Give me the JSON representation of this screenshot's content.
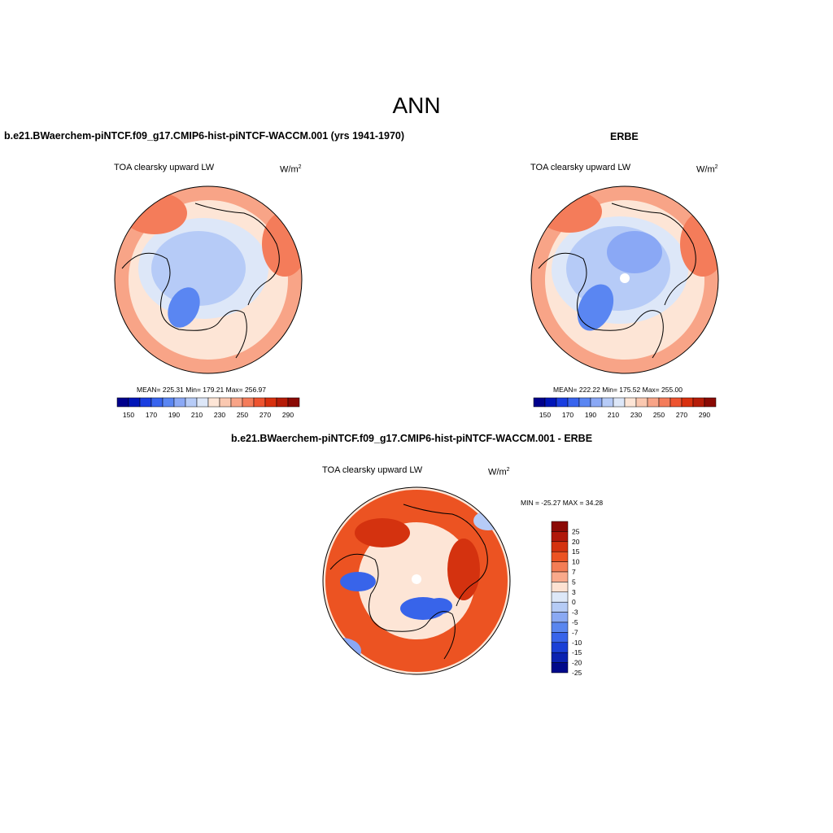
{
  "figure": {
    "title": "ANN",
    "variable": "TOA clearsky upward LW",
    "units_base": "W/m",
    "units_exp": "2"
  },
  "panels": [
    {
      "id": "model",
      "title": "b.e21.BWaerchem-piNTCF.f09_g17.CMIP6-hist-piNTCF-WACCM.001 (yrs 1941-1970)",
      "stats": "MEAN= 225.31  Min= 179.21  Max= 256.97",
      "mean": 225.31,
      "min": 179.21,
      "max": 256.97
    },
    {
      "id": "obs",
      "title": "ERBE",
      "stats": "MEAN= 222.22  Min= 175.52  Max= 255.00",
      "mean": 222.22,
      "min": 175.52,
      "max": 255.0
    },
    {
      "id": "diff",
      "title": "b.e21.BWaerchem-piNTCF.f09_g17.CMIP6-hist-piNTCF-WACCM.001 - ERBE",
      "stats": "MIN = -25.27 MAX =  34.28",
      "min": -25.27,
      "max": 34.28
    }
  ],
  "colorbar_abs": {
    "colors": [
      "#00008c",
      "#0015b8",
      "#1a3ee0",
      "#3864ee",
      "#5a86f2",
      "#8aa8f5",
      "#b6cbf7",
      "#dde7f8",
      "#fde5d6",
      "#fac8b0",
      "#f8a487",
      "#f47c5a",
      "#ee5430",
      "#d8300e",
      "#b51c08",
      "#8a0a04"
    ],
    "tick_labels": [
      "150",
      "170",
      "190",
      "210",
      "230",
      "250",
      "270",
      "290"
    ]
  },
  "colorbar_diff": {
    "colors": [
      "#8b0a05",
      "#b0180a",
      "#d4320f",
      "#ec5322",
      "#f47d55",
      "#f9a98b",
      "#fde2d2",
      "#dde8f8",
      "#b5cbf5",
      "#8aa9f3",
      "#5a86ef",
      "#3864ea",
      "#1a40d6",
      "#0a22b0",
      "#00098a"
    ],
    "tick_labels": [
      "25",
      "20",
      "15",
      "10",
      "7",
      "5",
      "3",
      "0",
      "-3",
      "-5",
      "-7",
      "-10",
      "-15",
      "-20",
      "-25"
    ]
  },
  "map_colors": {
    "warm_light": "#fde5d6",
    "warm_mid": "#f8a487",
    "warm_strong": "#f47c5a",
    "cool_light": "#dde7f8",
    "cool_mid": "#b6cbf7",
    "cool_strong": "#8aa8f5",
    "cool_deep": "#5a86f2",
    "diff_red": "#ec5322",
    "diff_red_dark": "#d4320f",
    "diff_blue": "#3864ea"
  }
}
